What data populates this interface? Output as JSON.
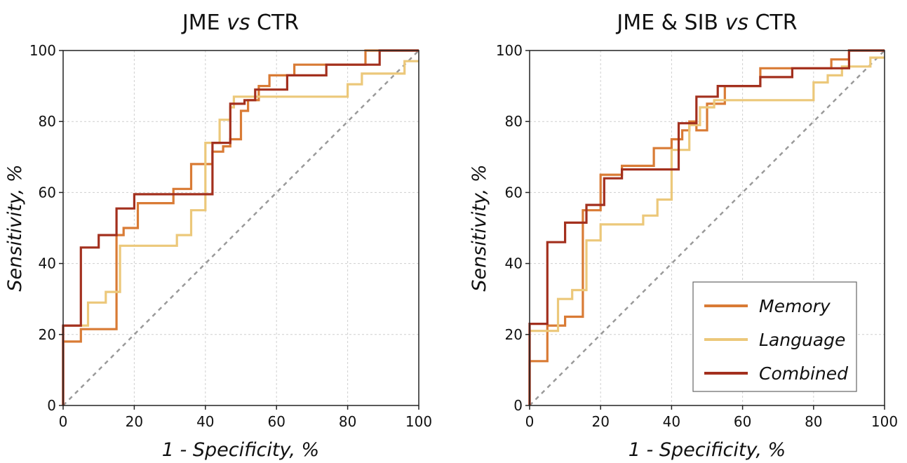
{
  "chart_data": [
    {
      "type": "line",
      "title_pre": "JME ",
      "title_vs": "vs",
      "title_post": " CTR",
      "xlabel": "1 - Specificity,  %",
      "ylabel": "Sensitivity,  %",
      "xlim": [
        0,
        100
      ],
      "ylim": [
        0,
        100
      ],
      "xticks": [
        "0",
        "20",
        "40",
        "60",
        "80",
        "100"
      ],
      "yticks": [
        "0",
        "20",
        "40",
        "60",
        "80",
        "100"
      ],
      "grid": true,
      "chance_line": true,
      "series": [
        {
          "name": "Memory",
          "color": "#d97b35",
          "points": [
            [
              0,
              0
            ],
            [
              0,
              18
            ],
            [
              5,
              18
            ],
            [
              5,
              21.5
            ],
            [
              15,
              21.5
            ],
            [
              15,
              48
            ],
            [
              17,
              48
            ],
            [
              17,
              50
            ],
            [
              21,
              50
            ],
            [
              21,
              57
            ],
            [
              31,
              57
            ],
            [
              31,
              61
            ],
            [
              36,
              61
            ],
            [
              36,
              68
            ],
            [
              40,
              68
            ],
            [
              40,
              68
            ],
            [
              42,
              68
            ],
            [
              42,
              71.5
            ],
            [
              45,
              71.5
            ],
            [
              45,
              73
            ],
            [
              47,
              73
            ],
            [
              47,
              75
            ],
            [
              50,
              75
            ],
            [
              50,
              83
            ],
            [
              52,
              83
            ],
            [
              52,
              86
            ],
            [
              55,
              86
            ],
            [
              55,
              90
            ],
            [
              58,
              90
            ],
            [
              58,
              93
            ],
            [
              65,
              93
            ],
            [
              65,
              96
            ],
            [
              85,
              96
            ],
            [
              85,
              100
            ],
            [
              100,
              100
            ]
          ]
        },
        {
          "name": "Language",
          "color": "#ecc87a",
          "points": [
            [
              0,
              0
            ],
            [
              0,
              22.5
            ],
            [
              7,
              22.5
            ],
            [
              7,
              29
            ],
            [
              12,
              29
            ],
            [
              12,
              32
            ],
            [
              15,
              32
            ],
            [
              15,
              32
            ],
            [
              16,
              32
            ],
            [
              16,
              45
            ],
            [
              32,
              45
            ],
            [
              32,
              48
            ],
            [
              36,
              48
            ],
            [
              36,
              55
            ],
            [
              40,
              55
            ],
            [
              40,
              74
            ],
            [
              44,
              74
            ],
            [
              44,
              80.5
            ],
            [
              47,
              80.5
            ],
            [
              47,
              84
            ],
            [
              48,
              84
            ],
            [
              48,
              87
            ],
            [
              80,
              87
            ],
            [
              80,
              90.5
            ],
            [
              84,
              90.5
            ],
            [
              84,
              93.5
            ],
            [
              96,
              93.5
            ],
            [
              96,
              97
            ],
            [
              100,
              97
            ]
          ]
        },
        {
          "name": "Combined",
          "color": "#a3301e",
          "points": [
            [
              0,
              0
            ],
            [
              0,
              22.5
            ],
            [
              5,
              22.5
            ],
            [
              5,
              44.5
            ],
            [
              10,
              44.5
            ],
            [
              10,
              48
            ],
            [
              15,
              48
            ],
            [
              15,
              55.5
            ],
            [
              20,
              55.5
            ],
            [
              20,
              59.5
            ],
            [
              42,
              59.5
            ],
            [
              42,
              74
            ],
            [
              47,
              74
            ],
            [
              47,
              85
            ],
            [
              51,
              85
            ],
            [
              51,
              86
            ],
            [
              54,
              86
            ],
            [
              54,
              89
            ],
            [
              63,
              89
            ],
            [
              63,
              93
            ],
            [
              74,
              93
            ],
            [
              74,
              96
            ],
            [
              89,
              96
            ],
            [
              89,
              100
            ],
            [
              100,
              100
            ]
          ]
        }
      ]
    },
    {
      "type": "line",
      "title_pre": "JME & SIB ",
      "title_vs": "vs",
      "title_post": " CTR",
      "xlabel": "1 - Specificity,  %",
      "ylabel": "Sensitivity,  %",
      "xlim": [
        0,
        100
      ],
      "ylim": [
        0,
        100
      ],
      "xticks": [
        "0",
        "20",
        "40",
        "60",
        "80",
        "100"
      ],
      "yticks": [
        "0",
        "20",
        "40",
        "60",
        "80",
        "100"
      ],
      "grid": true,
      "chance_line": true,
      "legend": {
        "position": "lower-right",
        "entries": [
          "Memory",
          "Language",
          "Combined"
        ]
      },
      "series": [
        {
          "name": "Memory",
          "color": "#d97b35",
          "points": [
            [
              0,
              0
            ],
            [
              0,
              12.5
            ],
            [
              5,
              12.5
            ],
            [
              5,
              22.5
            ],
            [
              10,
              22.5
            ],
            [
              10,
              25
            ],
            [
              15,
              25
            ],
            [
              15,
              55
            ],
            [
              20,
              55
            ],
            [
              20,
              65
            ],
            [
              26,
              65
            ],
            [
              26,
              67.5
            ],
            [
              32,
              67.5
            ],
            [
              32,
              67.5
            ],
            [
              35,
              67.5
            ],
            [
              35,
              72.5
            ],
            [
              40,
              72.5
            ],
            [
              40,
              75
            ],
            [
              43,
              75
            ],
            [
              43,
              77.5
            ],
            [
              45,
              77.5
            ],
            [
              45,
              80
            ],
            [
              47,
              80
            ],
            [
              47,
              77.5
            ],
            [
              50,
              77.5
            ],
            [
              50,
              85
            ],
            [
              55,
              85
            ],
            [
              55,
              90
            ],
            [
              65,
              90
            ],
            [
              65,
              95
            ],
            [
              85,
              95
            ],
            [
              85,
              97.5
            ],
            [
              90,
              97.5
            ],
            [
              90,
              100
            ],
            [
              100,
              100
            ]
          ]
        },
        {
          "name": "Language",
          "color": "#ecc87a",
          "points": [
            [
              0,
              0
            ],
            [
              0,
              21
            ],
            [
              8,
              21
            ],
            [
              8,
              30
            ],
            [
              12,
              30
            ],
            [
              12,
              32.5
            ],
            [
              16,
              32.5
            ],
            [
              16,
              46.5
            ],
            [
              20,
              46.5
            ],
            [
              20,
              51
            ],
            [
              32,
              51
            ],
            [
              32,
              53.5
            ],
            [
              36,
              53.5
            ],
            [
              36,
              58
            ],
            [
              40,
              58
            ],
            [
              40,
              72
            ],
            [
              45,
              72
            ],
            [
              45,
              79
            ],
            [
              48,
              79
            ],
            [
              48,
              84
            ],
            [
              52,
              84
            ],
            [
              52,
              86
            ],
            [
              80,
              86
            ],
            [
              80,
              91
            ],
            [
              84,
              91
            ],
            [
              84,
              93
            ],
            [
              88,
              93
            ],
            [
              88,
              95.5
            ],
            [
              96,
              95.5
            ],
            [
              96,
              98
            ],
            [
              100,
              98
            ]
          ]
        },
        {
          "name": "Combined",
          "color": "#a3301e",
          "points": [
            [
              0,
              0
            ],
            [
              0,
              23
            ],
            [
              5,
              23
            ],
            [
              5,
              46
            ],
            [
              10,
              46
            ],
            [
              10,
              51.5
            ],
            [
              16,
              51.5
            ],
            [
              16,
              56.5
            ],
            [
              21,
              56.5
            ],
            [
              21,
              64
            ],
            [
              26,
              64
            ],
            [
              26,
              66.5
            ],
            [
              42,
              66.5
            ],
            [
              42,
              79.5
            ],
            [
              47,
              79.5
            ],
            [
              47,
              87
            ],
            [
              53,
              87
            ],
            [
              53,
              90
            ],
            [
              65,
              90
            ],
            [
              65,
              92.5
            ],
            [
              74,
              92.5
            ],
            [
              74,
              95
            ],
            [
              90,
              95
            ],
            [
              90,
              100
            ],
            [
              100,
              100
            ]
          ]
        }
      ]
    }
  ]
}
